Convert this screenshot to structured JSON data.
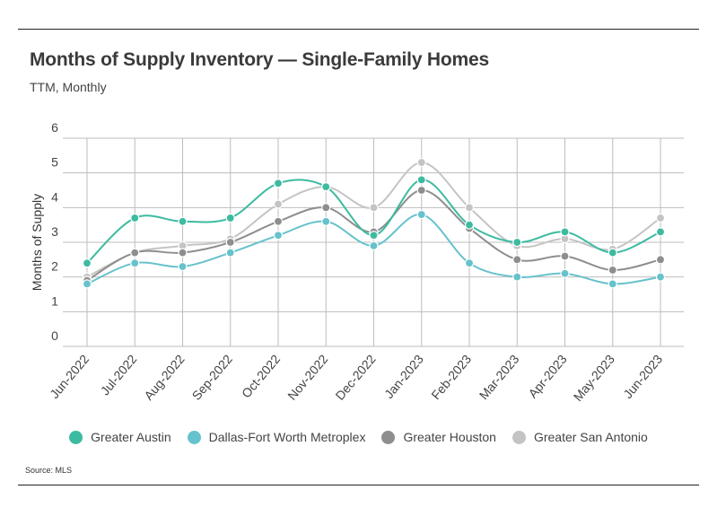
{
  "header": {
    "title": "Months of Supply Inventory — Single-Family Homes",
    "subtitle": "TTM, Monthly"
  },
  "footer": {
    "source": "Source:  MLS"
  },
  "colors": {
    "Greater Austin": "#3dbba0",
    "Dallas-Fort Worth Metroplex": "#66c2cc",
    "Greater Houston": "#8e8e8e",
    "Greater San Antonio": "#c4c4c4"
  },
  "chart_data": {
    "type": "line",
    "title": "Months of Supply Inventory — Single-Family Homes",
    "subtitle": "TTM, Monthly",
    "xlabel": "",
    "ylabel": "Months of Supply",
    "ylim": [
      0,
      6
    ],
    "yticks": [
      0,
      1,
      2,
      3,
      4,
      5,
      6
    ],
    "grid": true,
    "legend_position": "bottom",
    "categories": [
      "Jun-2022",
      "Jul-2022",
      "Aug-2022",
      "Sep-2022",
      "Oct-2022",
      "Nov-2022",
      "Dec-2022",
      "Jan-2023",
      "Feb-2023",
      "Mar-2023",
      "Apr-2023",
      "May-2023",
      "Jun-2023"
    ],
    "series": [
      {
        "name": "Greater Austin",
        "values": [
          2.4,
          3.7,
          3.6,
          3.7,
          4.7,
          4.6,
          3.2,
          4.8,
          3.5,
          3.0,
          3.3,
          2.7,
          3.3
        ]
      },
      {
        "name": "Dallas-Fort Worth Metroplex",
        "values": [
          1.8,
          2.4,
          2.3,
          2.7,
          3.2,
          3.6,
          2.9,
          3.8,
          2.4,
          2.0,
          2.1,
          1.8,
          2.0
        ]
      },
      {
        "name": "Greater Houston",
        "values": [
          1.9,
          2.7,
          2.7,
          3.0,
          3.6,
          4.0,
          3.3,
          4.5,
          3.4,
          2.5,
          2.6,
          2.2,
          2.5
        ]
      },
      {
        "name": "Greater San Antonio",
        "values": [
          2.0,
          2.7,
          2.9,
          3.1,
          4.1,
          4.6,
          4.0,
          5.3,
          4.0,
          2.9,
          3.1,
          2.8,
          3.7
        ]
      }
    ]
  }
}
